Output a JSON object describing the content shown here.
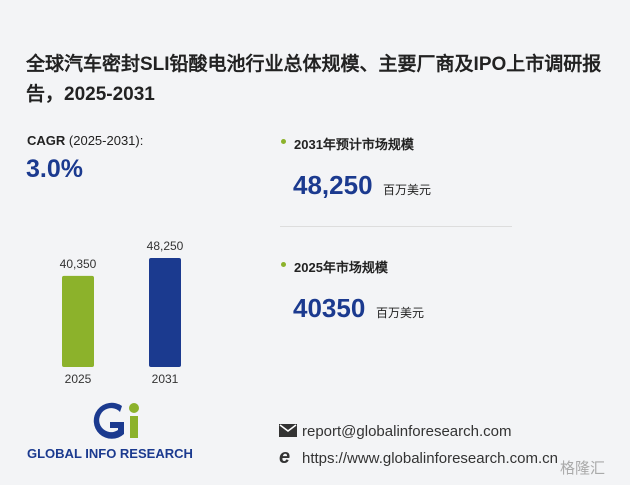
{
  "header": {
    "title": "全球汽车密封SLI铅酸电池行业总体规模、主要厂商及IPO上市调研报告，2025-2031"
  },
  "cagr": {
    "label": "CAGR",
    "period": "(2025-2031):",
    "value": "3.0%"
  },
  "chart_data": {
    "type": "bar",
    "categories": [
      "2025",
      "2031"
    ],
    "values": [
      40350,
      48250
    ],
    "value_labels": [
      "40,350",
      "48,250"
    ],
    "colors": [
      "#8cb22b",
      "#1b3a8f"
    ]
  },
  "stats": [
    {
      "label": "2031年预计市场规模",
      "value": "48,250",
      "unit": "百万美元"
    },
    {
      "label": "2025年市场规模",
      "value": "40350",
      "unit": "百万美元"
    }
  ],
  "footer": {
    "brand": "GLOBAL INFO RESEARCH",
    "email": "report@globalinforesearch.com",
    "url": "https://www.globalinforesearch.com.cn",
    "watermark": "格隆汇"
  }
}
